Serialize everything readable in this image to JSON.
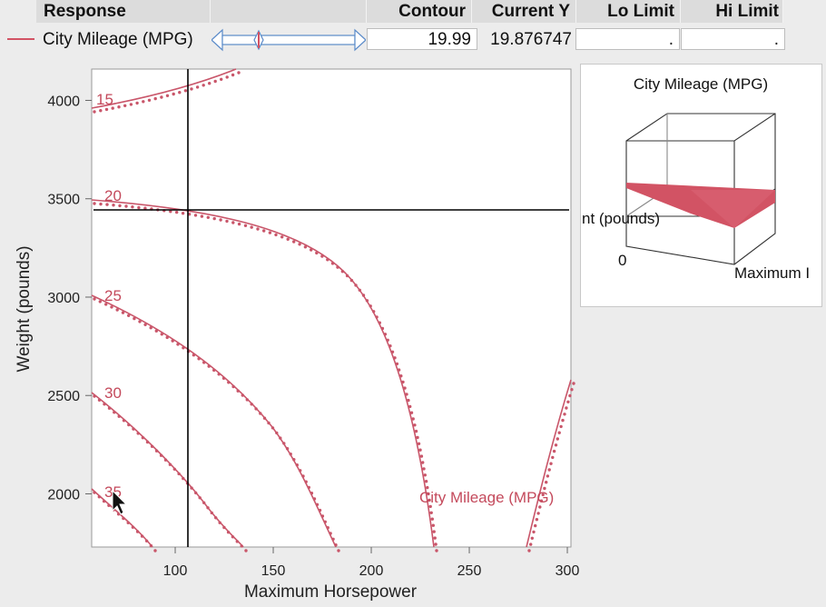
{
  "header": {
    "response": "Response",
    "contour": "Contour",
    "current_y": "Current Y",
    "lo_limit": "Lo Limit",
    "hi_limit": "Hi Limit"
  },
  "row": {
    "response_name": "City Mileage (MPG)",
    "contour_value": "19.99",
    "current_y": "19.876747",
    "lo_limit": ".",
    "hi_limit": ".",
    "color": "#d25364"
  },
  "contour_plot": {
    "xlabel": "Maximum Horsepower",
    "ylabel": "Weight (pounds)",
    "x_ticks": [
      "100",
      "150",
      "200",
      "250",
      "300"
    ],
    "y_ticks": [
      "2000",
      "2500",
      "3000",
      "3500",
      "4000"
    ],
    "contour_labels": [
      "15",
      "20",
      "25",
      "30",
      "35"
    ],
    "response_label": "City Mileage (MPG)",
    "crosshair": {
      "x": 104,
      "y": 3380
    }
  },
  "surface_plot": {
    "title": "City Mileage (MPG)",
    "y_axis_label": "nt (pounds)",
    "x_axis_label": "Maximum I",
    "corner_tick": "0"
  }
}
